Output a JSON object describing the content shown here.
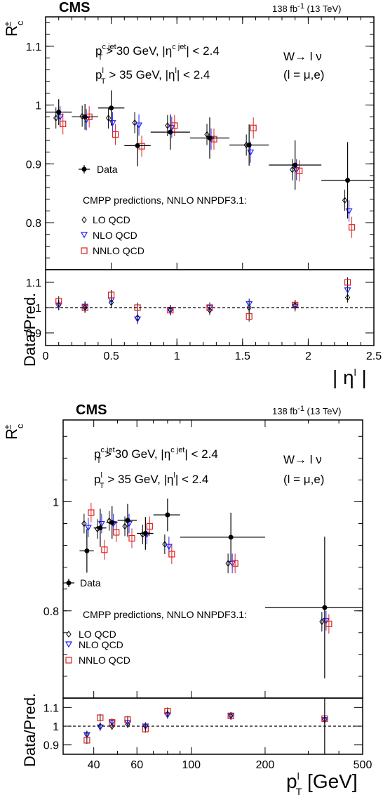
{
  "header": {
    "experiment": "CMS",
    "lumi_prefix": "138 fb",
    "lumi_exp": "-1",
    "lumi_suffix": " (13 TeV)"
  },
  "cuts": {
    "p": "p",
    "T": "T",
    "cjet": "c jet",
    "eta": "η",
    "gt": " > 30 GeV, |",
    "bar": "|",
    "lt": " < 2.4",
    "l": "l",
    "gt2": " > 35 GeV, |",
    "wlnu": "W→ l ν",
    "lchoice": "(l = μ,e)"
  },
  "legend": {
    "data": "Data",
    "predictions": "CMPP predictions, NNLO NNPDF3.1:",
    "lo": "LO QCD",
    "nlo": "NLO QCD",
    "nnlo": "NNLO QCD"
  },
  "labels": {
    "ratio": "Data/Pred.",
    "rc": "R",
    "rc_sup": "±",
    "rc_sub": "c"
  },
  "colors": {
    "data": "#000000",
    "lo": "#000000",
    "nlo": "#2020ff",
    "nnlo": "#e02020"
  },
  "chart_data": [
    {
      "type": "scatter",
      "xlabel": "| η^l |",
      "ylabel": "R_c^±",
      "xlim": [
        0,
        2.5
      ],
      "ylim": [
        0.72,
        1.15
      ],
      "yticks": [
        0.8,
        0.9,
        1.0,
        1.1
      ],
      "ytick_labels": [
        "0.8",
        "0.9",
        "1",
        "1.1"
      ],
      "xticks": [
        0,
        0.5,
        1,
        1.5,
        2,
        2.5
      ],
      "xtick_labels": [
        "0",
        "0.5",
        "1",
        "1.5",
        "2",
        "2.5"
      ],
      "bins": [
        [
          0,
          0.2
        ],
        [
          0.2,
          0.4
        ],
        [
          0.4,
          0.6
        ],
        [
          0.6,
          0.8
        ],
        [
          0.8,
          1.1
        ],
        [
          1.1,
          1.4
        ],
        [
          1.4,
          1.7
        ],
        [
          1.7,
          2.1
        ],
        [
          2.1,
          2.5
        ]
      ],
      "centers": [
        0.1,
        0.3,
        0.5,
        0.7,
        0.95,
        1.25,
        1.55,
        1.9,
        2.3
      ],
      "data": [
        0.988,
        0.98,
        0.995,
        0.931,
        0.954,
        0.944,
        0.932,
        0.898,
        0.872
      ],
      "data_err": [
        0.022,
        0.022,
        0.03,
        0.035,
        0.03,
        0.035,
        0.035,
        0.042,
        0.065
      ],
      "lo": [
        0.978,
        0.981,
        0.978,
        0.97,
        0.965,
        0.95,
        0.932,
        0.89,
        0.838
      ],
      "nlo": [
        0.98,
        0.975,
        0.97,
        0.966,
        0.962,
        0.942,
        0.92,
        0.89,
        0.82
      ],
      "nnlo": [
        0.968,
        0.98,
        0.95,
        0.93,
        0.965,
        0.942,
        0.961,
        0.888,
        0.792
      ],
      "ratio_ylim": [
        0.85,
        1.15
      ],
      "ratio_yticks": [
        0.9,
        1.0,
        1.1
      ],
      "ratio_ytick_labels": [
        "0.9",
        "1",
        "1.1"
      ],
      "ratio_lo": [
        1.01,
        1.0,
        1.02,
        0.96,
        0.99,
        0.99,
        1.0,
        1.01,
        1.04
      ],
      "ratio_nlo": [
        1.01,
        1.005,
        1.03,
        0.955,
        0.99,
        1.0,
        1.015,
        1.005,
        1.07
      ],
      "ratio_nnlo": [
        1.025,
        1.0,
        1.05,
        1.0,
        0.99,
        1.0,
        0.965,
        1.01,
        1.1
      ]
    },
    {
      "type": "scatter",
      "xlabel": "p_T^l [GeV]",
      "ylabel": "R_c^±",
      "xscale": "log",
      "xlim": [
        30,
        500
      ],
      "ylim": [
        0.64,
        1.15
      ],
      "yticks": [
        0.8,
        1.0
      ],
      "ytick_labels": [
        "0.8",
        "1"
      ],
      "xticks": [
        40,
        60,
        100,
        200,
        500
      ],
      "xtick_labels": [
        "40",
        "60",
        "100",
        "200",
        "500"
      ],
      "bins": [
        [
          35,
          40
        ],
        [
          40,
          45
        ],
        [
          45,
          50
        ],
        [
          50,
          60
        ],
        [
          60,
          70
        ],
        [
          70,
          90
        ],
        [
          90,
          200
        ],
        [
          200,
          500
        ]
      ],
      "centers": [
        37.5,
        42.5,
        47.5,
        55,
        65,
        80,
        145,
        350
      ],
      "data": [
        0.91,
        0.952,
        0.962,
        0.966,
        0.942,
        0.976,
        0.935,
        0.806
      ],
      "data_err": [
        0.04,
        0.035,
        0.03,
        0.03,
        0.03,
        0.03,
        0.045,
        0.13
      ],
      "lo": [
        0.96,
        0.95,
        0.965,
        0.955,
        0.94,
        0.922,
        0.887,
        0.78
      ],
      "nlo": [
        0.953,
        0.96,
        0.96,
        0.96,
        0.94,
        0.918,
        0.887,
        0.782
      ],
      "nnlo": [
        0.98,
        0.912,
        0.944,
        0.933,
        0.955,
        0.904,
        0.887,
        0.776
      ],
      "ratio_ylim": [
        0.85,
        1.15
      ],
      "ratio_yticks": [
        0.9,
        1.0,
        1.1
      ],
      "ratio_ytick_labels": [
        "0.9",
        "1",
        "1.1"
      ],
      "ratio_lo": [
        0.955,
        1.0,
        1.0,
        1.01,
        1.0,
        1.065,
        1.055,
        1.035
      ],
      "ratio_nlo": [
        0.955,
        0.995,
        1.02,
        1.02,
        1.0,
        1.06,
        1.055,
        1.035
      ],
      "ratio_nnlo": [
        0.925,
        1.045,
        1.02,
        1.035,
        0.985,
        1.08,
        1.055,
        1.04
      ]
    }
  ]
}
